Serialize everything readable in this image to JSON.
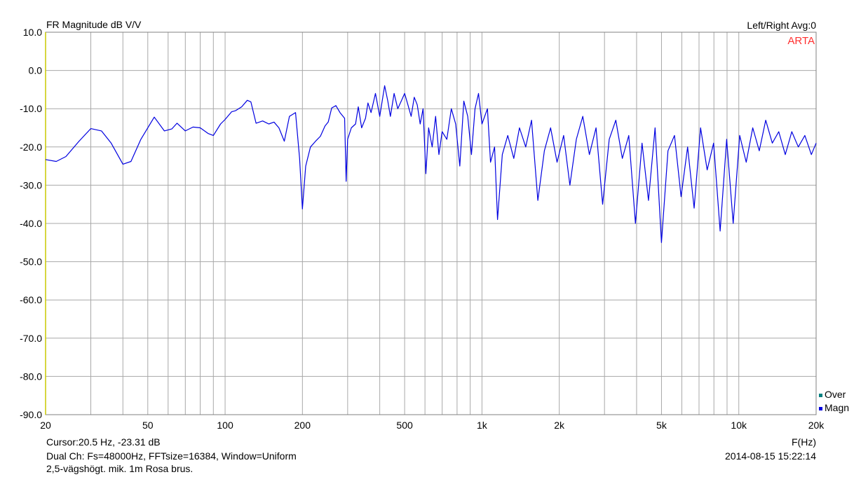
{
  "header": {
    "title": "FR Magnitude dB V/V",
    "right_info": "Left/Right  Avg:0",
    "brand": "ARTA"
  },
  "legend": [
    {
      "label": "Over",
      "color": "#008080"
    },
    {
      "label": "Magn",
      "color": "#0000e0"
    }
  ],
  "footer": {
    "cursor": "Cursor:20.5 Hz, -23.31 dB",
    "info": "Dual Ch: Fs=48000Hz, FFTsize=16384, Window=Uniform",
    "note": "2,5-vägshögt. mik. 1m Rosa brus.",
    "timestamp": "2014-08-15  15:22:14",
    "xunit": "F(Hz)"
  },
  "colors": {
    "trace": "#0000e0",
    "grid": "#a8a8a8",
    "axis_left": "#c8c800",
    "brand": "#ff3030"
  },
  "chart_data": {
    "type": "line",
    "title": "FR Magnitude dB V/V",
    "xlabel": "F(Hz)",
    "ylabel": "",
    "xscale": "log",
    "xlim": [
      20,
      20000
    ],
    "ylim": [
      -90,
      10
    ],
    "grid": true,
    "x_tick_labels": [
      {
        "v": 20,
        "t": "20"
      },
      {
        "v": 50,
        "t": "50"
      },
      {
        "v": 100,
        "t": "100"
      },
      {
        "v": 200,
        "t": "200"
      },
      {
        "v": 500,
        "t": "500"
      },
      {
        "v": 1000,
        "t": "1k"
      },
      {
        "v": 2000,
        "t": "2k"
      },
      {
        "v": 5000,
        "t": "5k"
      },
      {
        "v": 10000,
        "t": "10k"
      },
      {
        "v": 20000,
        "t": "20k"
      }
    ],
    "y_tick_labels": [
      "10.0",
      "0.0",
      "-10.0",
      "-20.0",
      "-30.0",
      "-40.0",
      "-50.0",
      "-60.0",
      "-70.0",
      "-80.0",
      "-90.0"
    ],
    "series": [
      {
        "name": "Magn",
        "color": "#0000e0",
        "points": [
          [
            20,
            -23.3
          ],
          [
            22,
            -23.8
          ],
          [
            24,
            -22.5
          ],
          [
            27,
            -18.5
          ],
          [
            30,
            -15.2
          ],
          [
            33,
            -15.8
          ],
          [
            36,
            -19
          ],
          [
            40,
            -24.5
          ],
          [
            43,
            -23.8
          ],
          [
            47,
            -18
          ],
          [
            53,
            -12.2
          ],
          [
            58,
            -15.8
          ],
          [
            62,
            -15.3
          ],
          [
            65,
            -13.8
          ],
          [
            70,
            -15.8
          ],
          [
            75,
            -14.8
          ],
          [
            80,
            -15
          ],
          [
            86,
            -16.5
          ],
          [
            90,
            -17
          ],
          [
            96,
            -14
          ],
          [
            100,
            -12.8
          ],
          [
            106,
            -10.8
          ],
          [
            110,
            -10.5
          ],
          [
            116,
            -9.5
          ],
          [
            122,
            -7.8
          ],
          [
            126,
            -8.2
          ],
          [
            132,
            -13.8
          ],
          [
            140,
            -13.2
          ],
          [
            148,
            -14
          ],
          [
            155,
            -13.5
          ],
          [
            162,
            -15
          ],
          [
            170,
            -18.5
          ],
          [
            178,
            -12
          ],
          [
            188,
            -11
          ],
          [
            195,
            -23
          ],
          [
            200,
            -36.2
          ],
          [
            206,
            -25
          ],
          [
            215,
            -20
          ],
          [
            225,
            -18.5
          ],
          [
            235,
            -17.2
          ],
          [
            245,
            -14.5
          ],
          [
            252,
            -13.5
          ],
          [
            260,
            -9.8
          ],
          [
            270,
            -9.2
          ],
          [
            280,
            -11
          ],
          [
            292,
            -12.5
          ],
          [
            296,
            -29
          ],
          [
            300,
            -18
          ],
          [
            310,
            -15
          ],
          [
            322,
            -14
          ],
          [
            330,
            -9.5
          ],
          [
            340,
            -15
          ],
          [
            352,
            -12.5
          ],
          [
            360,
            -8.5
          ],
          [
            370,
            -11
          ],
          [
            385,
            -6
          ],
          [
            400,
            -12
          ],
          [
            418,
            -4
          ],
          [
            430,
            -8
          ],
          [
            440,
            -12
          ],
          [
            455,
            -6
          ],
          [
            470,
            -10
          ],
          [
            485,
            -8
          ],
          [
            500,
            -6
          ],
          [
            515,
            -9
          ],
          [
            530,
            -12
          ],
          [
            545,
            -7
          ],
          [
            560,
            -9
          ],
          [
            575,
            -14
          ],
          [
            590,
            -10
          ],
          [
            605,
            -27
          ],
          [
            620,
            -15
          ],
          [
            640,
            -20
          ],
          [
            660,
            -12
          ],
          [
            680,
            -22
          ],
          [
            700,
            -16
          ],
          [
            730,
            -18
          ],
          [
            760,
            -10
          ],
          [
            790,
            -14
          ],
          [
            820,
            -25
          ],
          [
            850,
            -8
          ],
          [
            880,
            -12
          ],
          [
            910,
            -22
          ],
          [
            940,
            -10
          ],
          [
            970,
            -6
          ],
          [
            1000,
            -14
          ],
          [
            1050,
            -10
          ],
          [
            1080,
            -24
          ],
          [
            1120,
            -20
          ],
          [
            1150,
            -39
          ],
          [
            1200,
            -22
          ],
          [
            1260,
            -17
          ],
          [
            1330,
            -23
          ],
          [
            1400,
            -15
          ],
          [
            1480,
            -20
          ],
          [
            1560,
            -13
          ],
          [
            1650,
            -34
          ],
          [
            1750,
            -21
          ],
          [
            1850,
            -15
          ],
          [
            1960,
            -24
          ],
          [
            2080,
            -17
          ],
          [
            2200,
            -30
          ],
          [
            2330,
            -18
          ],
          [
            2470,
            -12
          ],
          [
            2620,
            -22
          ],
          [
            2780,
            -15
          ],
          [
            2950,
            -35
          ],
          [
            3130,
            -18
          ],
          [
            3320,
            -13
          ],
          [
            3520,
            -23
          ],
          [
            3730,
            -17
          ],
          [
            3960,
            -40
          ],
          [
            4200,
            -19
          ],
          [
            4450,
            -34
          ],
          [
            4720,
            -15
          ],
          [
            5000,
            -45
          ],
          [
            5300,
            -21
          ],
          [
            5620,
            -17
          ],
          [
            5960,
            -33
          ],
          [
            6320,
            -20
          ],
          [
            6700,
            -36
          ],
          [
            7100,
            -15
          ],
          [
            7530,
            -26
          ],
          [
            7980,
            -19
          ],
          [
            8460,
            -42
          ],
          [
            8970,
            -18
          ],
          [
            9510,
            -40
          ],
          [
            10080,
            -17
          ],
          [
            10690,
            -24
          ],
          [
            11330,
            -15
          ],
          [
            12010,
            -21
          ],
          [
            12730,
            -13
          ],
          [
            13500,
            -19
          ],
          [
            14310,
            -16
          ],
          [
            15170,
            -22
          ],
          [
            16080,
            -16
          ],
          [
            17050,
            -20
          ],
          [
            18070,
            -17
          ],
          [
            19160,
            -22
          ],
          [
            20000,
            -19
          ]
        ]
      },
      {
        "name": "Over",
        "color": "#008080",
        "points": []
      }
    ]
  }
}
